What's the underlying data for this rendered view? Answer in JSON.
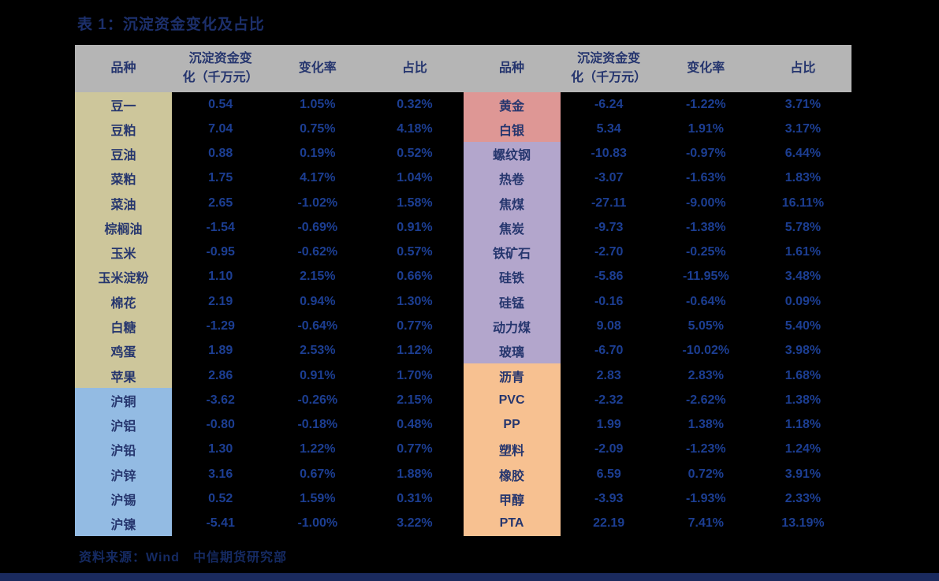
{
  "page": {
    "title": "表 1：沉淀资金变化及占比",
    "source": "资料来源：Wind　中信期货研究部"
  },
  "colors": {
    "page_bg": "#000000",
    "header_bg": "#b5b5b5",
    "title_text": "#1c2f6b",
    "header_text": "#25356e",
    "label_text": "#26366e",
    "number_text": "#1c3e92",
    "source_text": "#152a62",
    "bottom_bar": "#1a2a5e",
    "groups": {
      "grains_oilseeds": "#cdc69b",
      "base_metals": "#93bbe3",
      "precious_metals": "#de9795",
      "black_building": "#b3a6cc",
      "energy_chemicals": "#f7c191"
    }
  },
  "table": {
    "headers": [
      "品种",
      "沉淀资金变\n化（千万元）",
      "变化率",
      "占比"
    ],
    "left_rows": [
      {
        "name": "豆一",
        "change": "0.54",
        "rate": "1.05%",
        "share": "0.32%",
        "group": "grains_oilseeds"
      },
      {
        "name": "豆粕",
        "change": "7.04",
        "rate": "0.75%",
        "share": "4.18%",
        "group": "grains_oilseeds"
      },
      {
        "name": "豆油",
        "change": "0.88",
        "rate": "0.19%",
        "share": "0.52%",
        "group": "grains_oilseeds"
      },
      {
        "name": "菜粕",
        "change": "1.75",
        "rate": "4.17%",
        "share": "1.04%",
        "group": "grains_oilseeds"
      },
      {
        "name": "菜油",
        "change": "2.65",
        "rate": "-1.02%",
        "share": "1.58%",
        "group": "grains_oilseeds"
      },
      {
        "name": "棕榈油",
        "change": "-1.54",
        "rate": "-0.69%",
        "share": "0.91%",
        "group": "grains_oilseeds"
      },
      {
        "name": "玉米",
        "change": "-0.95",
        "rate": "-0.62%",
        "share": "0.57%",
        "group": "grains_oilseeds"
      },
      {
        "name": "玉米淀粉",
        "change": "1.10",
        "rate": "2.15%",
        "share": "0.66%",
        "group": "grains_oilseeds"
      },
      {
        "name": "棉花",
        "change": "2.19",
        "rate": "0.94%",
        "share": "1.30%",
        "group": "grains_oilseeds"
      },
      {
        "name": "白糖",
        "change": "-1.29",
        "rate": "-0.64%",
        "share": "0.77%",
        "group": "grains_oilseeds"
      },
      {
        "name": "鸡蛋",
        "change": "1.89",
        "rate": "2.53%",
        "share": "1.12%",
        "group": "grains_oilseeds"
      },
      {
        "name": "苹果",
        "change": "2.86",
        "rate": "0.91%",
        "share": "1.70%",
        "group": "grains_oilseeds"
      },
      {
        "name": "沪铜",
        "change": "-3.62",
        "rate": "-0.26%",
        "share": "2.15%",
        "group": "base_metals"
      },
      {
        "name": "沪铝",
        "change": "-0.80",
        "rate": "-0.18%",
        "share": "0.48%",
        "group": "base_metals"
      },
      {
        "name": "沪铅",
        "change": "1.30",
        "rate": "1.22%",
        "share": "0.77%",
        "group": "base_metals"
      },
      {
        "name": "沪锌",
        "change": "3.16",
        "rate": "0.67%",
        "share": "1.88%",
        "group": "base_metals"
      },
      {
        "name": "沪锡",
        "change": "0.52",
        "rate": "1.59%",
        "share": "0.31%",
        "group": "base_metals"
      },
      {
        "name": "沪镍",
        "change": "-5.41",
        "rate": "-1.00%",
        "share": "3.22%",
        "group": "base_metals"
      }
    ],
    "right_rows": [
      {
        "name": "黄金",
        "change": "-6.24",
        "rate": "-1.22%",
        "share": "3.71%",
        "group": "precious_metals"
      },
      {
        "name": "白银",
        "change": "5.34",
        "rate": "1.91%",
        "share": "3.17%",
        "group": "precious_metals"
      },
      {
        "name": "螺纹钢",
        "change": "-10.83",
        "rate": "-0.97%",
        "share": "6.44%",
        "group": "black_building"
      },
      {
        "name": "热卷",
        "change": "-3.07",
        "rate": "-1.63%",
        "share": "1.83%",
        "group": "black_building"
      },
      {
        "name": "焦煤",
        "change": "-27.11",
        "rate": "-9.00%",
        "share": "16.11%",
        "group": "black_building"
      },
      {
        "name": "焦炭",
        "change": "-9.73",
        "rate": "-1.38%",
        "share": "5.78%",
        "group": "black_building"
      },
      {
        "name": "铁矿石",
        "change": "-2.70",
        "rate": "-0.25%",
        "share": "1.61%",
        "group": "black_building"
      },
      {
        "name": "硅铁",
        "change": "-5.86",
        "rate": "-11.95%",
        "share": "3.48%",
        "group": "black_building"
      },
      {
        "name": "硅锰",
        "change": "-0.16",
        "rate": "-0.64%",
        "share": "0.09%",
        "group": "black_building"
      },
      {
        "name": "动力煤",
        "change": "9.08",
        "rate": "5.05%",
        "share": "5.40%",
        "group": "black_building"
      },
      {
        "name": "玻璃",
        "change": "-6.70",
        "rate": "-10.02%",
        "share": "3.98%",
        "group": "black_building"
      },
      {
        "name": "沥青",
        "change": "2.83",
        "rate": "2.83%",
        "share": "1.68%",
        "group": "energy_chemicals"
      },
      {
        "name": "PVC",
        "change": "-2.32",
        "rate": "-2.62%",
        "share": "1.38%",
        "group": "energy_chemicals"
      },
      {
        "name": "PP",
        "change": "1.99",
        "rate": "1.38%",
        "share": "1.18%",
        "group": "energy_chemicals"
      },
      {
        "name": "塑料",
        "change": "-2.09",
        "rate": "-1.23%",
        "share": "1.24%",
        "group": "energy_chemicals"
      },
      {
        "name": "橡胶",
        "change": "6.59",
        "rate": "0.72%",
        "share": "3.91%",
        "group": "energy_chemicals"
      },
      {
        "name": "甲醇",
        "change": "-3.93",
        "rate": "-1.93%",
        "share": "2.33%",
        "group": "energy_chemicals"
      },
      {
        "name": "PTA",
        "change": "22.19",
        "rate": "7.41%",
        "share": "13.19%",
        "group": "energy_chemicals"
      }
    ]
  }
}
